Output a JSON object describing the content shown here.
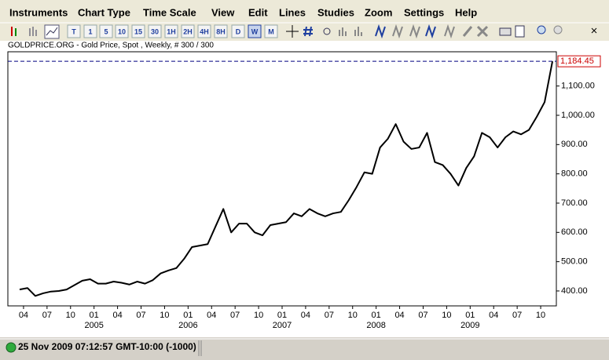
{
  "menu": [
    "Instruments",
    "Chart Type",
    "Time Scale",
    "View",
    "Edit",
    "Lines",
    "Studies",
    "Zoom",
    "Settings",
    "Help"
  ],
  "toolbar": {
    "timeframes": [
      "T",
      "1",
      "5",
      "10",
      "15",
      "30",
      "1H",
      "2H",
      "4H",
      "8H",
      "D",
      "W",
      "M"
    ],
    "selected": "W"
  },
  "chart_data": {
    "type": "line",
    "title": "GOLDPRICE.ORG - Gold Price, Spot , Weekly, # 300 / 300",
    "x": [
      "2004-03",
      "2004-04",
      "2004-05",
      "2004-06",
      "2004-07",
      "2004-08",
      "2004-09",
      "2004-10",
      "2004-11",
      "2004-12",
      "2005-01",
      "2005-02",
      "2005-03",
      "2005-04",
      "2005-05",
      "2005-06",
      "2005-07",
      "2005-08",
      "2005-09",
      "2005-10",
      "2005-11",
      "2005-12",
      "2006-01",
      "2006-02",
      "2006-03",
      "2006-04",
      "2006-05",
      "2006-06",
      "2006-07",
      "2006-08",
      "2006-09",
      "2006-10",
      "2006-11",
      "2006-12",
      "2007-01",
      "2007-02",
      "2007-03",
      "2007-04",
      "2007-05",
      "2007-06",
      "2007-07",
      "2007-08",
      "2007-09",
      "2007-10",
      "2007-11",
      "2007-12",
      "2008-01",
      "2008-02",
      "2008-03",
      "2008-04",
      "2008-05",
      "2008-06",
      "2008-07",
      "2008-08",
      "2008-09",
      "2008-10",
      "2008-11",
      "2008-12",
      "2009-01",
      "2009-02",
      "2009-03",
      "2009-04",
      "2009-05",
      "2009-06",
      "2009-07",
      "2009-08",
      "2009-09",
      "2009-10",
      "2009-11"
    ],
    "values": [
      405,
      410,
      383,
      392,
      398,
      400,
      405,
      420,
      435,
      440,
      425,
      425,
      432,
      428,
      422,
      432,
      425,
      437,
      460,
      470,
      478,
      510,
      550,
      555,
      560,
      620,
      680,
      600,
      630,
      630,
      600,
      590,
      625,
      630,
      635,
      665,
      655,
      680,
      665,
      655,
      665,
      670,
      710,
      755,
      805,
      800,
      890,
      920,
      970,
      910,
      885,
      890,
      940,
      840,
      830,
      800,
      760,
      820,
      860,
      940,
      925,
      890,
      925,
      945,
      935,
      950,
      995,
      1045,
      1184.45
    ],
    "color": "#000000",
    "xlim": [
      "2004-02",
      "2009-12"
    ],
    "xticks": [
      {
        "value": "2004-04",
        "label": "04"
      },
      {
        "value": "2004-07",
        "label": "07"
      },
      {
        "value": "2004-10",
        "label": "10"
      },
      {
        "value": "2005-01",
        "label": "01"
      },
      {
        "value": "2005-04",
        "label": "04"
      },
      {
        "value": "2005-07",
        "label": "07"
      },
      {
        "value": "2005-10",
        "label": "10"
      },
      {
        "value": "2006-01",
        "label": "01"
      },
      {
        "value": "2006-04",
        "label": "04"
      },
      {
        "value": "2006-07",
        "label": "07"
      },
      {
        "value": "2006-10",
        "label": "10"
      },
      {
        "value": "2007-01",
        "label": "01"
      },
      {
        "value": "2007-04",
        "label": "04"
      },
      {
        "value": "2007-07",
        "label": "07"
      },
      {
        "value": "2007-10",
        "label": "10"
      },
      {
        "value": "2008-01",
        "label": "01"
      },
      {
        "value": "2008-04",
        "label": "04"
      },
      {
        "value": "2008-07",
        "label": "07"
      },
      {
        "value": "2008-10",
        "label": "10"
      },
      {
        "value": "2009-01",
        "label": "01"
      },
      {
        "value": "2009-04",
        "label": "04"
      },
      {
        "value": "2009-07",
        "label": "07"
      },
      {
        "value": "2009-10",
        "label": "10"
      }
    ],
    "year_ticks": [
      {
        "value": "2005-01",
        "label": "2005"
      },
      {
        "value": "2006-01",
        "label": "2006"
      },
      {
        "value": "2007-01",
        "label": "2007"
      },
      {
        "value": "2008-01",
        "label": "2008"
      },
      {
        "value": "2009-01",
        "label": "2009"
      }
    ],
    "ylim": [
      349,
      1217
    ],
    "yticks": [
      {
        "value": 400,
        "label": "400.00"
      },
      {
        "value": 500,
        "label": "500.00"
      },
      {
        "value": 600,
        "label": "600.00"
      },
      {
        "value": 700,
        "label": "700.00"
      },
      {
        "value": 800,
        "label": "800.00"
      },
      {
        "value": 900,
        "label": "900.00"
      },
      {
        "value": 1000,
        "label": "1,000.00"
      },
      {
        "value": 1100,
        "label": "1,100.00"
      }
    ],
    "current_price": {
      "value": 1184.45,
      "label": "1,184.45",
      "line_color": "#000080",
      "box_color": "#cc0000"
    }
  },
  "status": {
    "text": "25 Nov 2009 07:12:57  GMT-10:00 (-1000)"
  }
}
